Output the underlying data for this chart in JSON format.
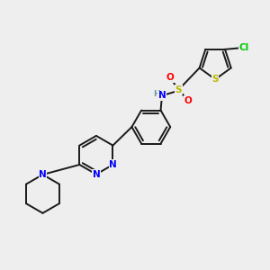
{
  "background_color": "#eeeeee",
  "bond_color": "#1a1a1a",
  "atom_colors": {
    "N": "#0000ff",
    "O": "#ff0000",
    "S": "#b8b800",
    "Cl": "#00cc00",
    "H": "#6a9a9a",
    "C": "#1a1a1a"
  },
  "figsize": [
    3.0,
    3.0
  ],
  "dpi": 100
}
